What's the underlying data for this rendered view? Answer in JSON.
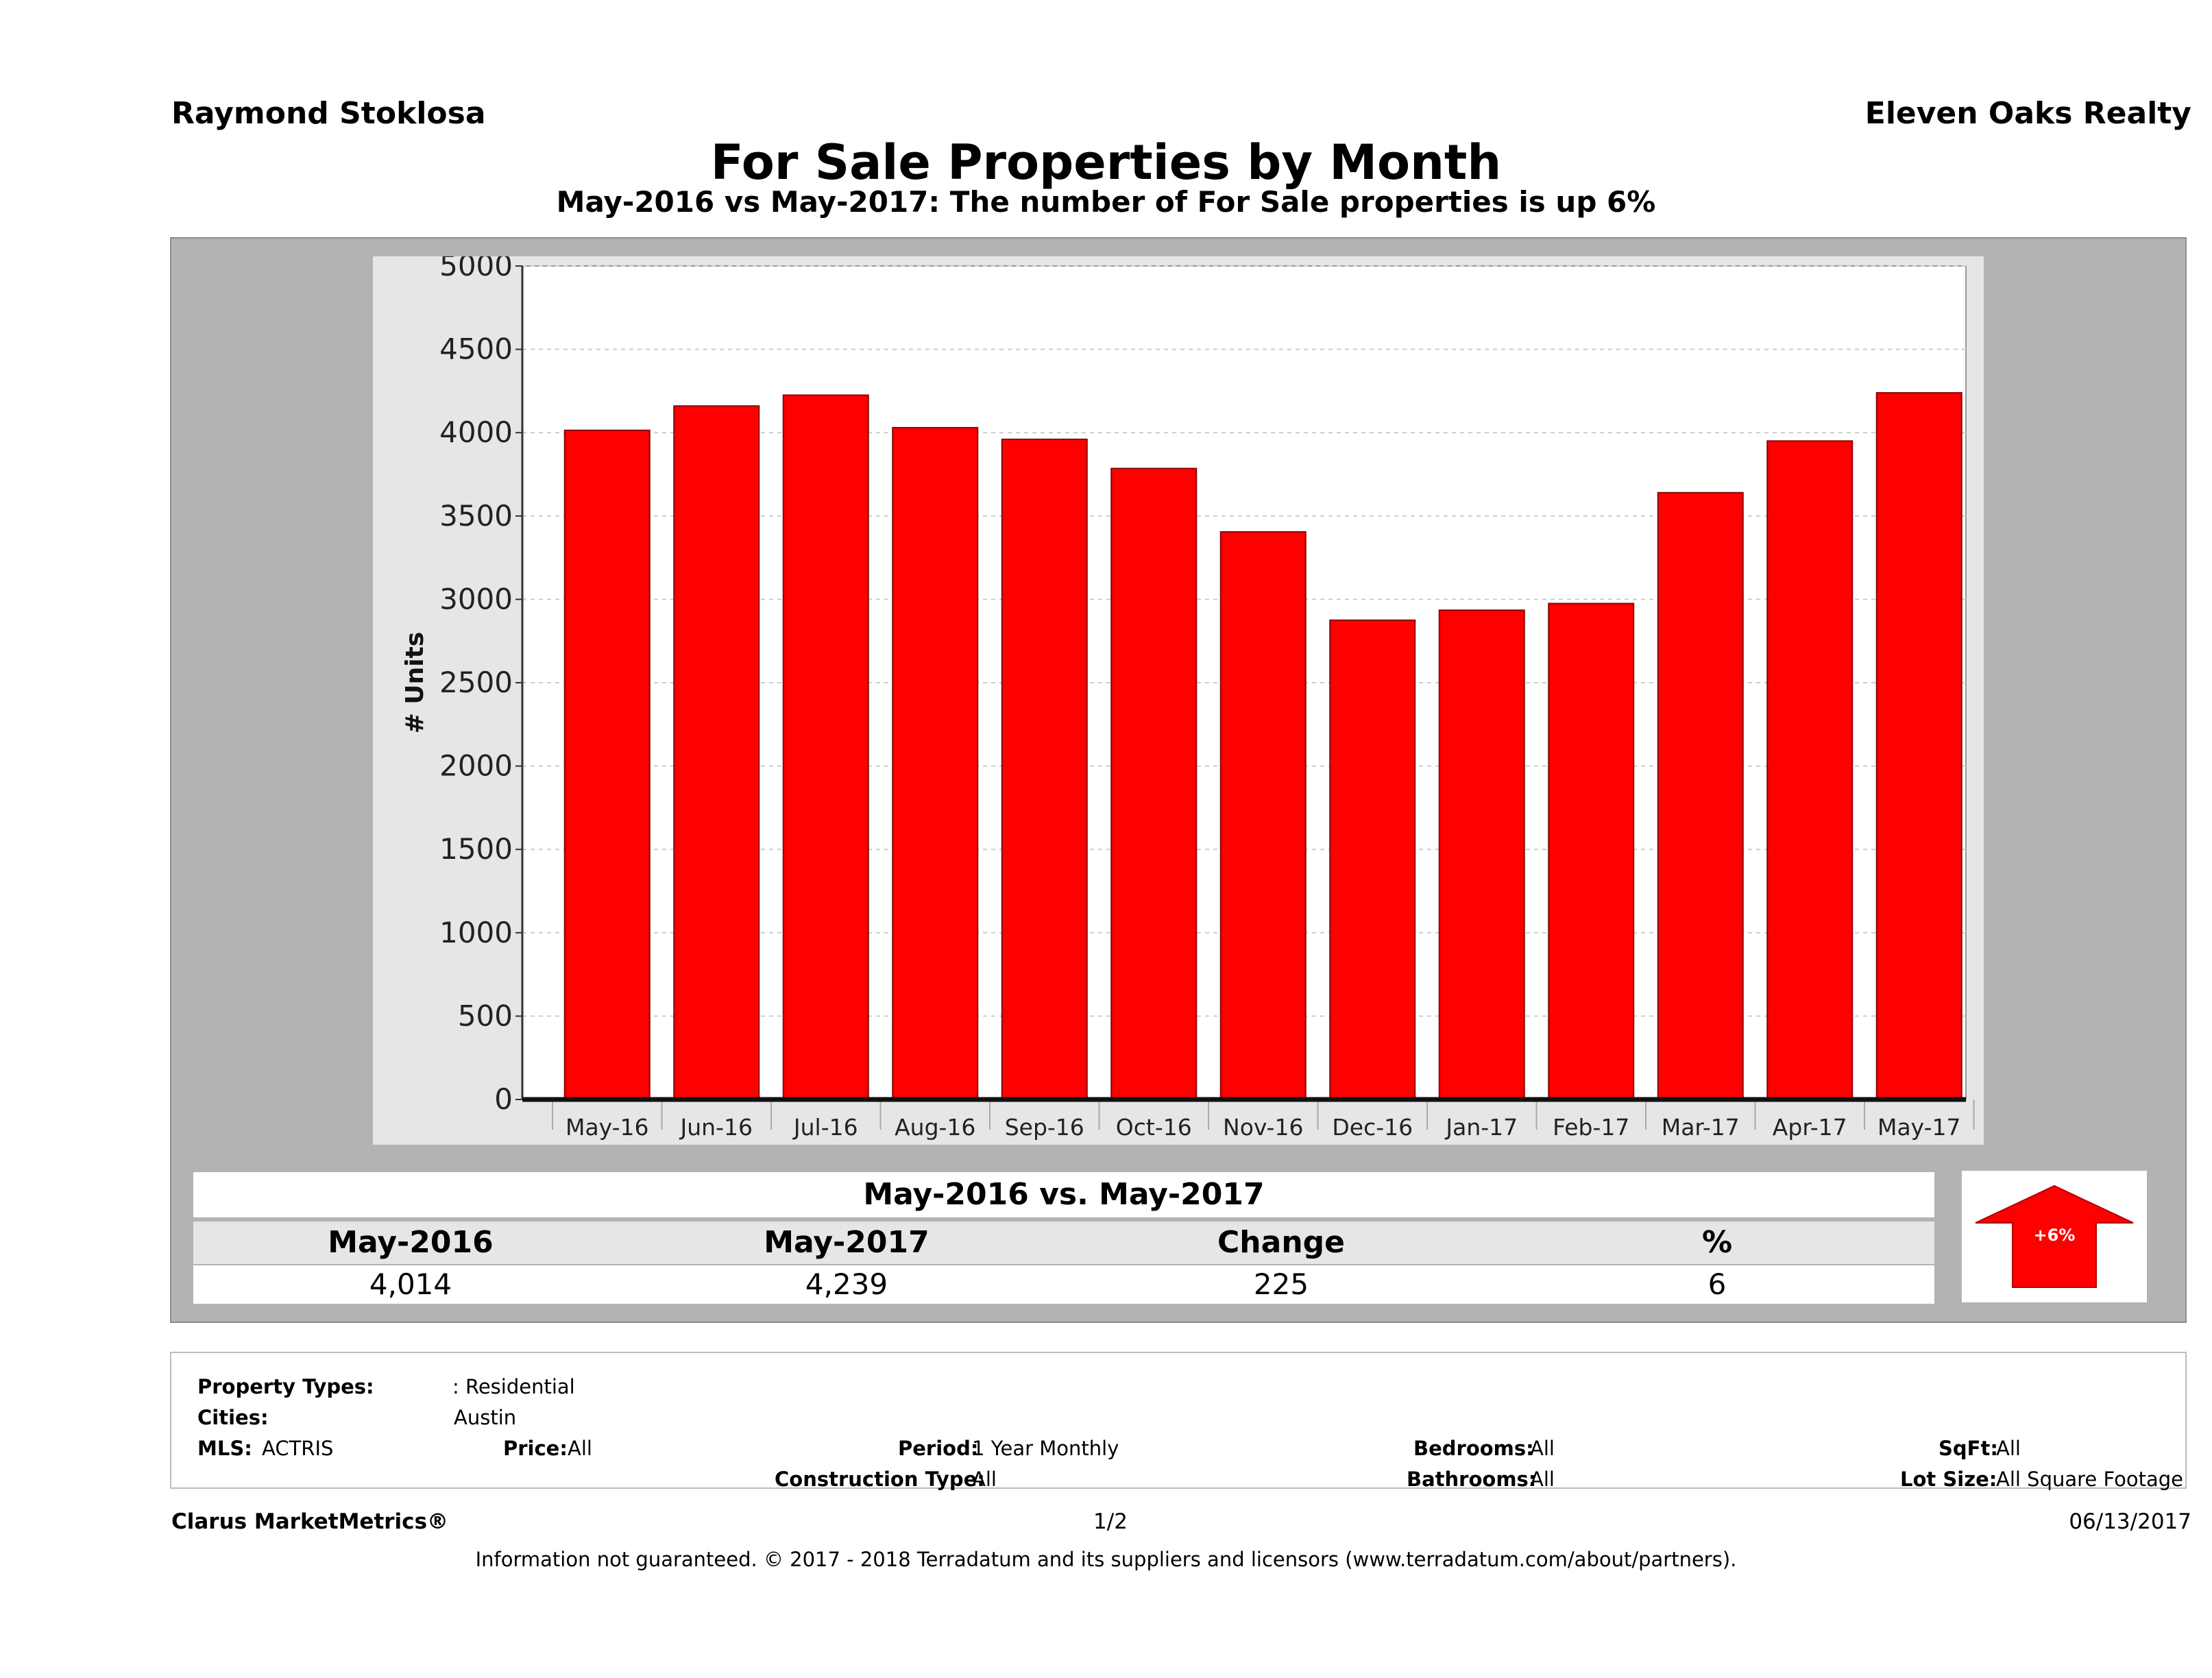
{
  "header": {
    "agent": "Raymond Stoklosa",
    "brokerage": "Eleven Oaks Realty",
    "title": "For Sale Properties by Month",
    "subtitle": "May-2016 vs May-2017: The number of For Sale  properties is up 6%"
  },
  "chart_data": {
    "type": "bar",
    "categories": [
      "May-16",
      "Jun-16",
      "Jul-16",
      "Aug-16",
      "Sep-16",
      "Oct-16",
      "Nov-16",
      "Dec-16",
      "Jan-17",
      "Feb-17",
      "Mar-17",
      "Apr-17",
      "May-17"
    ],
    "values": [
      4014,
      4160,
      4225,
      4030,
      3960,
      3785,
      3405,
      2875,
      2935,
      2975,
      3640,
      3950,
      4239
    ],
    "ylabel": "# Units",
    "ylim": [
      0,
      5000
    ],
    "yticks": [
      0,
      500,
      1000,
      1500,
      2000,
      2500,
      3000,
      3500,
      4000,
      4500,
      5000
    ],
    "grid": true,
    "bar_color": "#ff0000"
  },
  "summary": {
    "title": "May-2016 vs. May-2017",
    "headers": [
      "May-2016",
      "May-2017",
      "Change",
      "%"
    ],
    "values": [
      "4,014",
      "4,239",
      "225",
      "6"
    ],
    "badge": "+6%",
    "badge_color": "#ff0000"
  },
  "filters": {
    "property_types_label": "Property Types:",
    "property_types_value": ": Residential",
    "cities_label": "Cities:",
    "cities_value": "Austin",
    "mls_label": "MLS:",
    "mls_value": "ACTRIS",
    "price_label": "Price:",
    "price_value": "All",
    "period_label": "Period:",
    "period_value": "1 Year Monthly",
    "construction_label": "Construction Type:",
    "construction_value": "All",
    "bedrooms_label": "Bedrooms:",
    "bedrooms_value": "All",
    "bathrooms_label": "Bathrooms:",
    "bathrooms_value": "All",
    "sqft_label": "SqFt:",
    "sqft_value": "All",
    "lotsize_label": "Lot Size:",
    "lotsize_value": "All Square Footage"
  },
  "footer": {
    "left": "Clarus MarketMetrics®",
    "page": "1/2",
    "date": "06/13/2017",
    "disclaimer": "Information not guaranteed. © 2017 - 2018 Terradatum and its suppliers and licensors (www.terradatum.com/about/partners)."
  }
}
